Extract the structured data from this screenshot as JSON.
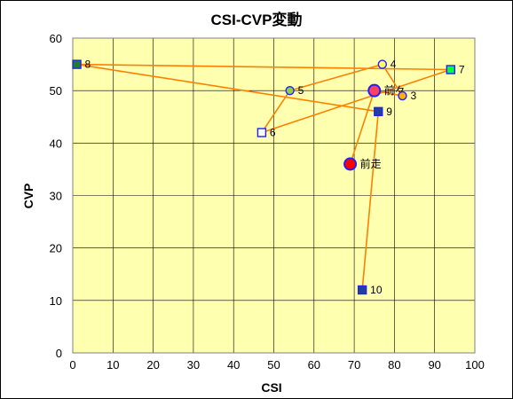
{
  "chart_data": {
    "type": "scatter",
    "title": "CSI-CVP変動",
    "xlabel": "CSI",
    "ylabel": "CVP",
    "xlim": [
      0,
      100
    ],
    "ylim": [
      0,
      60
    ],
    "x_ticks": [
      0,
      10,
      20,
      30,
      40,
      50,
      60,
      70,
      80,
      90,
      100
    ],
    "y_ticks": [
      0,
      10,
      20,
      30,
      40,
      50,
      60
    ],
    "grid": true,
    "legend": "none",
    "plot_background": "#FFFFB0",
    "line_color": "#FF8000",
    "points": [
      {
        "label": "前走",
        "x": 69,
        "y": 36,
        "marker": "circle",
        "size": "large",
        "fill": "#FF0000",
        "stroke": "#2020FF"
      },
      {
        "label": "前々",
        "x": 75,
        "y": 50,
        "marker": "circle",
        "size": "large",
        "fill": "#FF4060",
        "stroke": "#2020FF"
      },
      {
        "label": "3",
        "x": 82,
        "y": 49,
        "marker": "circle",
        "size": "small",
        "fill": "#FFB000",
        "stroke": "#2020FF"
      },
      {
        "label": "4",
        "x": 77,
        "y": 55,
        "marker": "circle",
        "size": "small",
        "fill": "#FFFF60",
        "stroke": "#2020FF"
      },
      {
        "label": "5",
        "x": 54,
        "y": 50,
        "marker": "circle",
        "size": "small",
        "fill": "#90D040",
        "stroke": "#2020FF"
      },
      {
        "label": "6",
        "x": 47,
        "y": 42,
        "marker": "square",
        "size": "small",
        "fill": "#FFFFFF",
        "stroke": "#2020FF"
      },
      {
        "label": "7",
        "x": 94,
        "y": 54,
        "marker": "square",
        "size": "small",
        "fill": "#00FF40",
        "stroke": "#2020FF"
      },
      {
        "label": "8",
        "x": 1,
        "y": 55,
        "marker": "square",
        "size": "small",
        "fill": "#208020",
        "stroke": "#2020FF"
      },
      {
        "label": "9",
        "x": 76,
        "y": 46,
        "marker": "square",
        "size": "small",
        "fill": "#2040A0",
        "stroke": "#2020FF"
      },
      {
        "label": "10",
        "x": 72,
        "y": 12,
        "marker": "square",
        "size": "small",
        "fill": "#2040A0",
        "stroke": "#2020FF"
      }
    ]
  }
}
